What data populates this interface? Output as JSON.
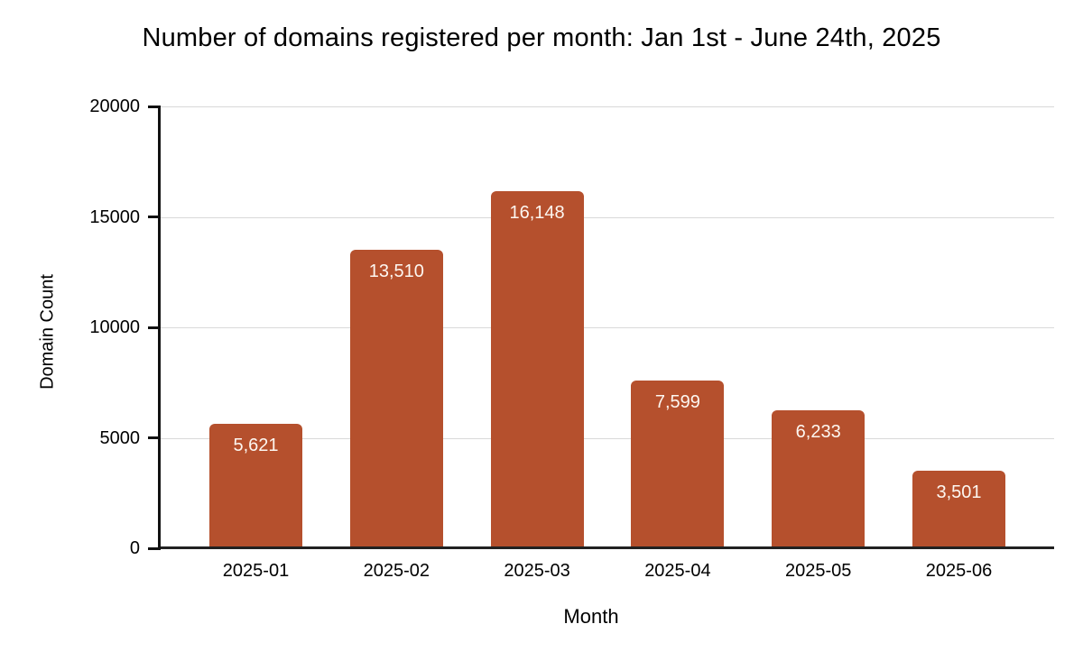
{
  "chart_data": {
    "type": "bar",
    "title": "Number of domains registered per month: Jan 1st - June 24th, 2025",
    "categories": [
      "2025-01",
      "2025-02",
      "2025-03",
      "2025-04",
      "2025-05",
      "2025-06"
    ],
    "values": [
      5621,
      13510,
      16148,
      7599,
      6233,
      3501
    ],
    "value_labels": [
      "5,621",
      "13,510",
      "16,148",
      "7,599",
      "6,233",
      "3,501"
    ],
    "xlabel": "Month",
    "ylabel": "Domain Count",
    "ylim": [
      0,
      20000
    ],
    "yticks": [
      0,
      5000,
      10000,
      15000,
      20000
    ],
    "grid": true,
    "legend": false,
    "colors": {
      "bar_fill": "#B5502D",
      "bar_value_text": "#FDF7F1",
      "gridline": "#D9D9D9",
      "axis_line": "#111111",
      "baseline": "#212121",
      "text": "#000000",
      "background": "#FFFFFF"
    }
  }
}
